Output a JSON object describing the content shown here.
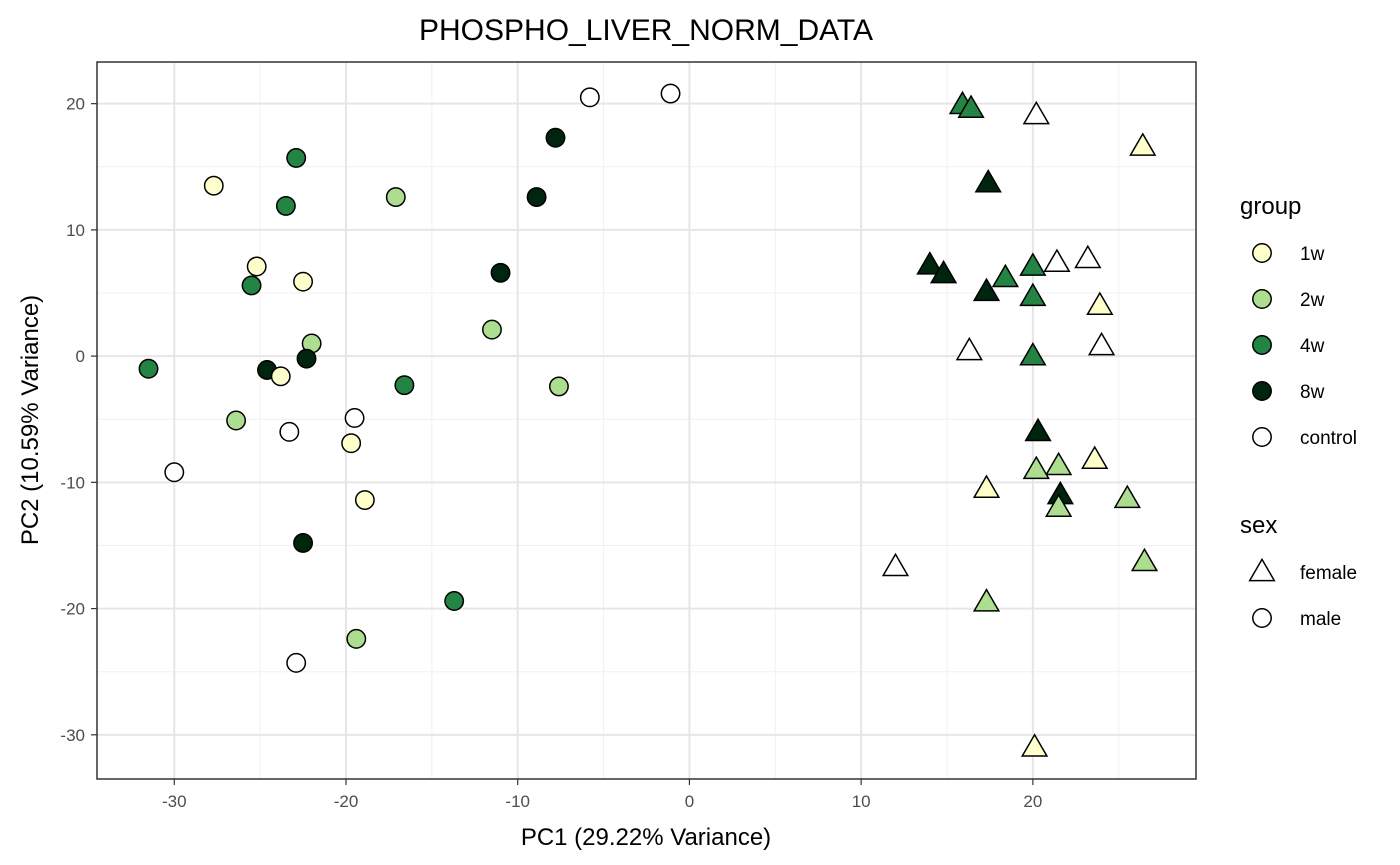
{
  "chart_data": {
    "type": "scatter",
    "title": "PHOSPHO_LIVER_NORM_DATA",
    "xlabel": "PC1 (29.22% Variance)",
    "ylabel": "PC2 (10.59% Variance)",
    "xlim": [
      -34.5,
      29.5
    ],
    "ylim": [
      -33.5,
      23.3
    ],
    "x_ticks": [
      -30,
      -20,
      -10,
      0,
      10,
      20
    ],
    "y_ticks": [
      20,
      10,
      0,
      -10,
      -20,
      -30
    ],
    "x_tick_labels": [
      "-30",
      "-20",
      "-10",
      "0",
      "10",
      "20"
    ],
    "y_tick_labels": [
      "20",
      "10",
      "0",
      "-10",
      "-20",
      "-30"
    ],
    "grid": true,
    "legend_position": "right",
    "legends": [
      {
        "title": "group",
        "items": [
          {
            "label": "1w",
            "color": "#ffffcc"
          },
          {
            "label": "2w",
            "color": "#addd8e"
          },
          {
            "label": "4w",
            "color": "#238443"
          },
          {
            "label": "8w",
            "color": "#00250f"
          },
          {
            "label": "control",
            "color": "#ffffff"
          }
        ]
      },
      {
        "title": "sex",
        "items": [
          {
            "label": "female",
            "shape": "triangle"
          },
          {
            "label": "male",
            "shape": "circle"
          }
        ]
      }
    ],
    "group_colors": {
      "1w": "#ffffcc",
      "2w": "#addd8e",
      "4w": "#238443",
      "8w": "#00250f",
      "control": "#ffffff"
    },
    "points": [
      {
        "x": -5.8,
        "y": 20.5,
        "group": "control",
        "sex": "male"
      },
      {
        "x": -1.1,
        "y": 20.8,
        "group": "control",
        "sex": "male"
      },
      {
        "x": -7.8,
        "y": 17.3,
        "group": "8w",
        "sex": "male"
      },
      {
        "x": -22.9,
        "y": 15.7,
        "group": "4w",
        "sex": "male"
      },
      {
        "x": -27.7,
        "y": 13.5,
        "group": "1w",
        "sex": "male"
      },
      {
        "x": -17.1,
        "y": 12.6,
        "group": "2w",
        "sex": "male"
      },
      {
        "x": -8.9,
        "y": 12.6,
        "group": "8w",
        "sex": "male"
      },
      {
        "x": -23.5,
        "y": 11.9,
        "group": "4w",
        "sex": "male"
      },
      {
        "x": -25.2,
        "y": 7.1,
        "group": "1w",
        "sex": "male"
      },
      {
        "x": -11.0,
        "y": 6.6,
        "group": "8w",
        "sex": "male"
      },
      {
        "x": -22.5,
        "y": 5.9,
        "group": "1w",
        "sex": "male"
      },
      {
        "x": -25.5,
        "y": 5.6,
        "group": "4w",
        "sex": "male"
      },
      {
        "x": -11.5,
        "y": 2.1,
        "group": "2w",
        "sex": "male"
      },
      {
        "x": -22.0,
        "y": 1.0,
        "group": "2w",
        "sex": "male"
      },
      {
        "x": -22.3,
        "y": -0.2,
        "group": "8w",
        "sex": "male"
      },
      {
        "x": -31.5,
        "y": -1.0,
        "group": "4w",
        "sex": "male"
      },
      {
        "x": -24.6,
        "y": -1.1,
        "group": "8w",
        "sex": "male"
      },
      {
        "x": -23.8,
        "y": -1.6,
        "group": "1w",
        "sex": "male"
      },
      {
        "x": -16.6,
        "y": -2.3,
        "group": "4w",
        "sex": "male"
      },
      {
        "x": -7.6,
        "y": -2.4,
        "group": "2w",
        "sex": "male"
      },
      {
        "x": -19.5,
        "y": -4.9,
        "group": "control",
        "sex": "male"
      },
      {
        "x": -26.4,
        "y": -5.1,
        "group": "2w",
        "sex": "male"
      },
      {
        "x": -23.3,
        "y": -6.0,
        "group": "control",
        "sex": "male"
      },
      {
        "x": -19.7,
        "y": -6.9,
        "group": "1w",
        "sex": "male"
      },
      {
        "x": -30.0,
        "y": -9.2,
        "group": "control",
        "sex": "male"
      },
      {
        "x": -18.9,
        "y": -11.4,
        "group": "1w",
        "sex": "male"
      },
      {
        "x": -22.5,
        "y": -14.8,
        "group": "8w",
        "sex": "male"
      },
      {
        "x": -13.7,
        "y": -19.4,
        "group": "4w",
        "sex": "male"
      },
      {
        "x": -19.4,
        "y": -22.4,
        "group": "2w",
        "sex": "male"
      },
      {
        "x": -22.9,
        "y": -24.3,
        "group": "control",
        "sex": "male"
      },
      {
        "x": 15.9,
        "y": 19.9,
        "group": "4w",
        "sex": "female"
      },
      {
        "x": 16.4,
        "y": 19.6,
        "group": "4w",
        "sex": "female"
      },
      {
        "x": 20.2,
        "y": 19.1,
        "group": "control",
        "sex": "female"
      },
      {
        "x": 26.4,
        "y": 16.6,
        "group": "1w",
        "sex": "female"
      },
      {
        "x": 17.4,
        "y": 13.7,
        "group": "8w",
        "sex": "female"
      },
      {
        "x": 23.2,
        "y": 7.7,
        "group": "control",
        "sex": "female"
      },
      {
        "x": 21.4,
        "y": 7.4,
        "group": "control",
        "sex": "female"
      },
      {
        "x": 14.0,
        "y": 7.2,
        "group": "8w",
        "sex": "female"
      },
      {
        "x": 20.0,
        "y": 7.1,
        "group": "4w",
        "sex": "female"
      },
      {
        "x": 14.8,
        "y": 6.5,
        "group": "8w",
        "sex": "female"
      },
      {
        "x": 18.4,
        "y": 6.2,
        "group": "4w",
        "sex": "female"
      },
      {
        "x": 17.3,
        "y": 5.1,
        "group": "8w",
        "sex": "female"
      },
      {
        "x": 20.0,
        "y": 4.7,
        "group": "4w",
        "sex": "female"
      },
      {
        "x": 23.9,
        "y": 4.0,
        "group": "1w",
        "sex": "female"
      },
      {
        "x": 24.0,
        "y": 0.8,
        "group": "control",
        "sex": "female"
      },
      {
        "x": 16.3,
        "y": 0.4,
        "group": "control",
        "sex": "female"
      },
      {
        "x": 20.0,
        "y": 0.0,
        "group": "4w",
        "sex": "female"
      },
      {
        "x": 20.3,
        "y": -6.0,
        "group": "8w",
        "sex": "female"
      },
      {
        "x": 23.6,
        "y": -8.2,
        "group": "1w",
        "sex": "female"
      },
      {
        "x": 21.5,
        "y": -8.7,
        "group": "2w",
        "sex": "female"
      },
      {
        "x": 20.2,
        "y": -9.0,
        "group": "2w",
        "sex": "female"
      },
      {
        "x": 17.3,
        "y": -10.5,
        "group": "1w",
        "sex": "female"
      },
      {
        "x": 21.6,
        "y": -11.0,
        "group": "8w",
        "sex": "female"
      },
      {
        "x": 25.5,
        "y": -11.3,
        "group": "2w",
        "sex": "female"
      },
      {
        "x": 21.5,
        "y": -12.0,
        "group": "2w",
        "sex": "female"
      },
      {
        "x": 26.5,
        "y": -16.3,
        "group": "2w",
        "sex": "female"
      },
      {
        "x": 12.0,
        "y": -16.7,
        "group": "control",
        "sex": "female"
      },
      {
        "x": 17.3,
        "y": -19.5,
        "group": "2w",
        "sex": "female"
      },
      {
        "x": 20.1,
        "y": -31.0,
        "group": "1w",
        "sex": "female"
      }
    ]
  }
}
